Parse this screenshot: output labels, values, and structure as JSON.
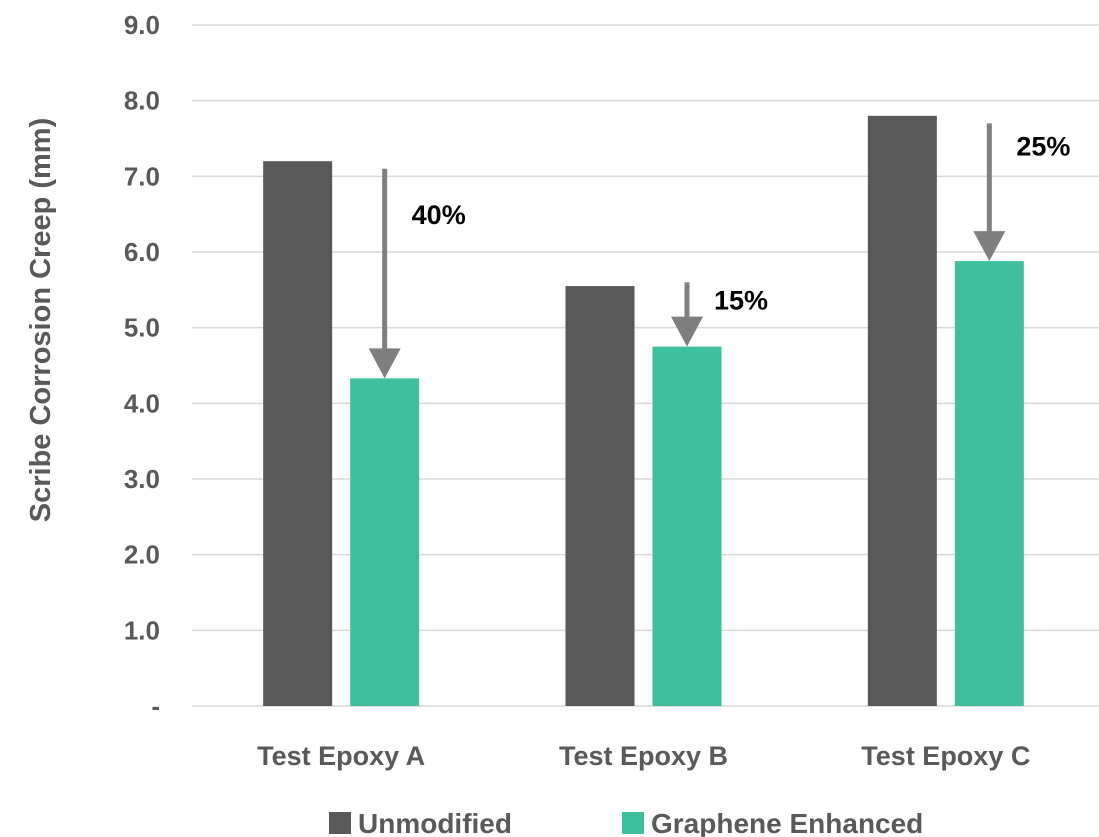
{
  "chart_data": {
    "type": "bar",
    "categories": [
      "Test Epoxy A",
      "Test Epoxy B",
      "Test Epoxy C"
    ],
    "series": [
      {
        "name": "Unmodified",
        "values": [
          7.2,
          5.55,
          7.8
        ],
        "color": "#595959"
      },
      {
        "name": "Graphene Enhanced",
        "values": [
          4.33,
          4.75,
          5.88
        ],
        "color": "#40bf9e"
      }
    ],
    "ylabel": "Scribe Corrosion Creep (mm)",
    "ylim": [
      0,
      9
    ],
    "yticks": [
      0,
      1,
      2,
      3,
      4,
      5,
      6,
      7,
      8,
      9
    ],
    "ytick_labels": [
      "-",
      "1.0",
      "2.0",
      "3.0",
      "4.0",
      "5.0",
      "6.0",
      "7.0",
      "8.0",
      "9.0"
    ],
    "grid": true,
    "legend_position": "bottom",
    "annotations": [
      {
        "category": "Test Epoxy A",
        "text": "40%",
        "arrow_from": 7.1,
        "arrow_to": 4.33
      },
      {
        "category": "Test Epoxy B",
        "text": "15%",
        "arrow_from": 5.6,
        "arrow_to": 4.75
      },
      {
        "category": "Test Epoxy C",
        "text": "25%",
        "arrow_from": 7.7,
        "arrow_to": 5.88
      }
    ],
    "arrow_color": "#7f7f7f"
  }
}
